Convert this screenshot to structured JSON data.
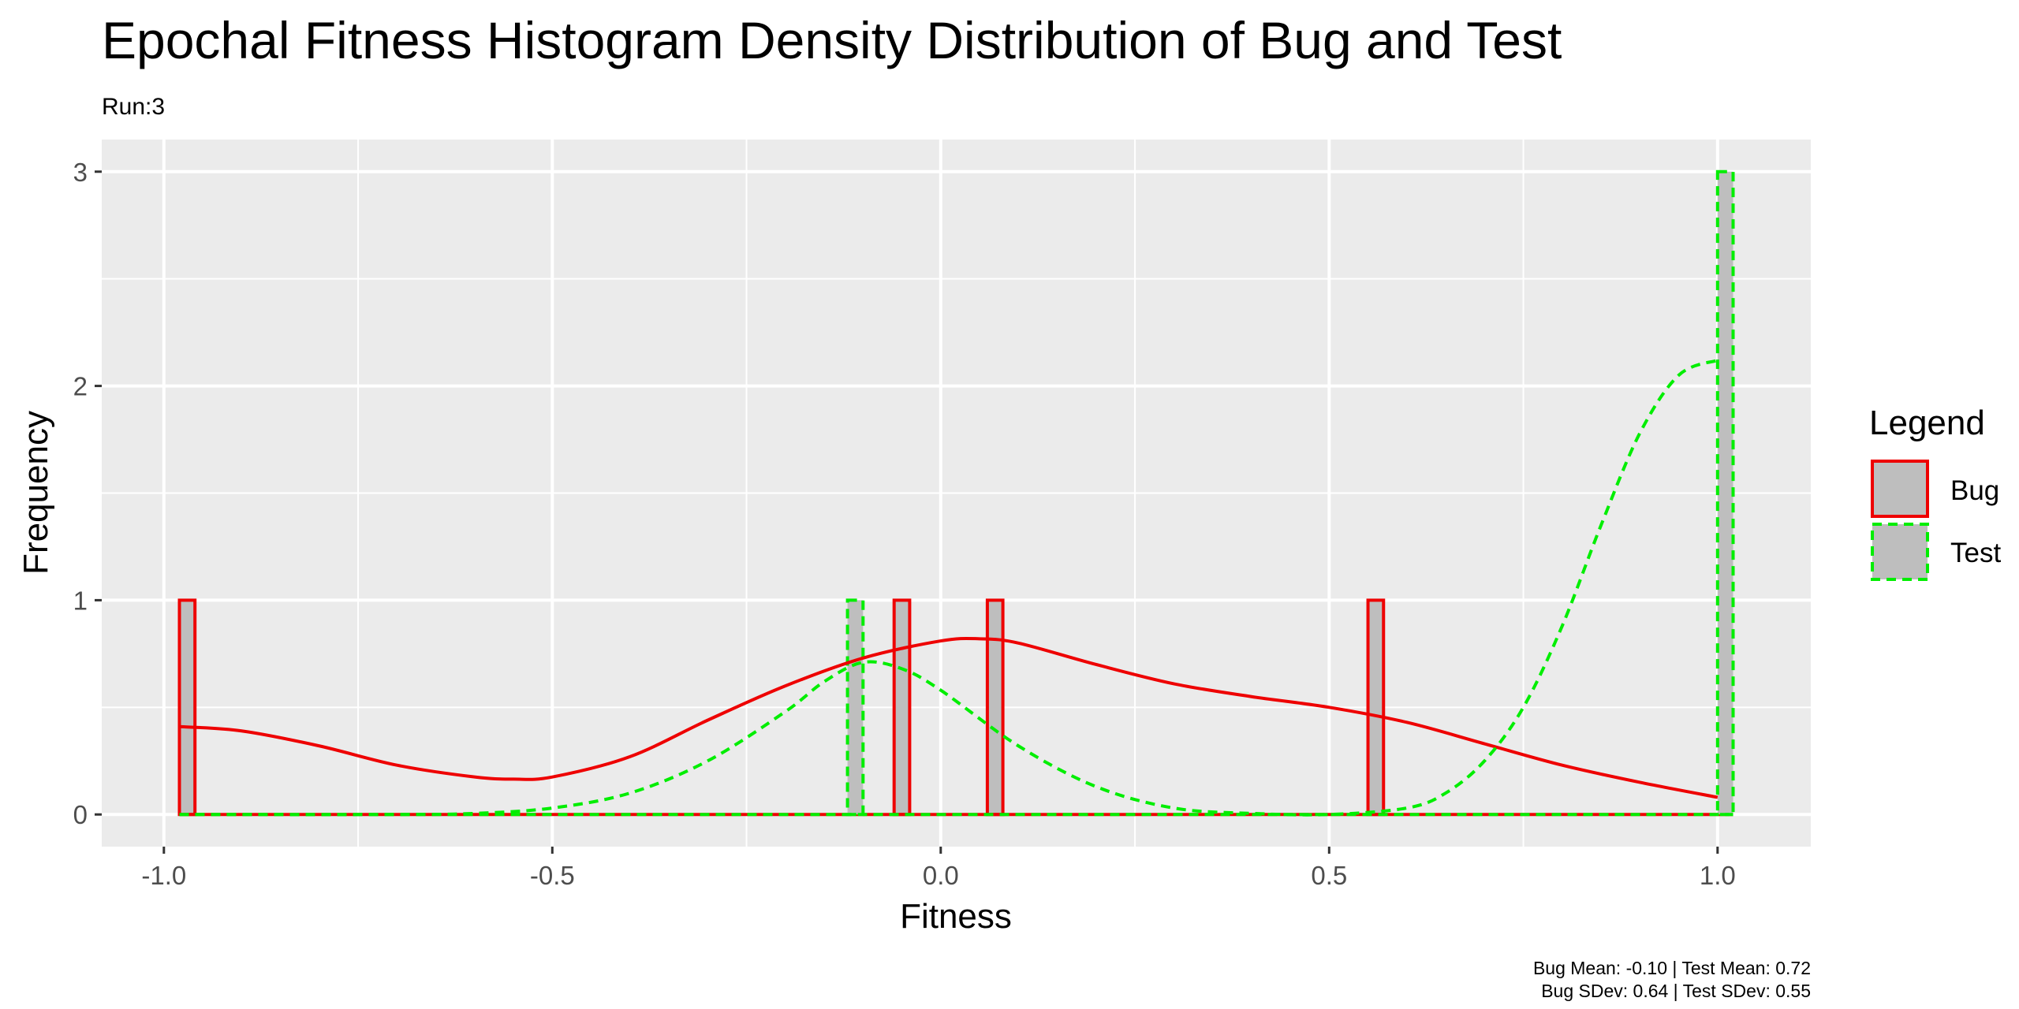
{
  "chart_data": {
    "type": "histogram",
    "title": "Epochal Fitness Histogram Density Distribution of Bug and Test",
    "subtitle": "Run:3",
    "xlabel": "Fitness",
    "ylabel": "Frequency",
    "xlim": [
      -1.08,
      1.12
    ],
    "ylim": [
      -0.15,
      3.15
    ],
    "x_ticks": [
      -1.0,
      -0.5,
      0.0,
      0.5,
      1.0
    ],
    "x_tick_labels": [
      "-1.0",
      "-0.5",
      "0.0",
      "0.5",
      "1.0"
    ],
    "y_ticks": [
      0,
      1,
      2,
      3
    ],
    "y_tick_labels": [
      "0",
      "1",
      "2",
      "3"
    ],
    "grid": true,
    "legend": {
      "title": "Legend",
      "position": "right",
      "entries": [
        {
          "label": "Bug",
          "color": "#ee0000",
          "dash": "solid"
        },
        {
          "label": "Test",
          "color": "#00ee00",
          "dash": "dashed"
        }
      ]
    },
    "colors": {
      "panel": "#ebebeb",
      "grid": "#ffffff",
      "bar_fill": "#bebebe",
      "bug": "#ee0000",
      "test": "#00ee00"
    },
    "series": [
      {
        "name": "Bug",
        "bins": {
          "start": -0.98,
          "end": 1.02,
          "counts": [
            {
              "x0": -0.98,
              "x1": -0.96,
              "count": 1
            },
            {
              "x0": -0.06,
              "x1": -0.04,
              "count": 1
            },
            {
              "x0": 0.06,
              "x1": 0.08,
              "count": 1
            },
            {
              "x0": 0.55,
              "x1": 0.57,
              "count": 1
            }
          ]
        },
        "density": {
          "x": [
            -0.98,
            -0.9,
            -0.8,
            -0.7,
            -0.6,
            -0.55,
            -0.5,
            -0.4,
            -0.3,
            -0.2,
            -0.1,
            0.0,
            0.05,
            0.1,
            0.2,
            0.3,
            0.4,
            0.5,
            0.6,
            0.7,
            0.8,
            0.9,
            1.0
          ],
          "y": [
            0.41,
            0.39,
            0.32,
            0.23,
            0.175,
            0.165,
            0.175,
            0.27,
            0.44,
            0.6,
            0.73,
            0.81,
            0.82,
            0.8,
            0.7,
            0.61,
            0.55,
            0.5,
            0.43,
            0.33,
            0.23,
            0.15,
            0.08
          ]
        },
        "mean": -0.1,
        "sdev": 0.64
      },
      {
        "name": "Test",
        "bins": {
          "start": -0.98,
          "end": 1.02,
          "counts": [
            {
              "x0": -0.12,
              "x1": -0.1,
              "count": 1
            },
            {
              "x0": 1.0,
              "x1": 1.02,
              "count": 3
            }
          ]
        },
        "density": {
          "x": [
            -0.98,
            -0.7,
            -0.6,
            -0.5,
            -0.4,
            -0.3,
            -0.2,
            -0.15,
            -0.1,
            -0.05,
            0.0,
            0.1,
            0.2,
            0.3,
            0.4,
            0.5,
            0.6,
            0.65,
            0.7,
            0.75,
            0.8,
            0.85,
            0.9,
            0.95,
            1.0
          ],
          "y": [
            0.0,
            0.0,
            0.005,
            0.03,
            0.1,
            0.25,
            0.48,
            0.62,
            0.71,
            0.68,
            0.58,
            0.32,
            0.13,
            0.03,
            0.005,
            0.0,
            0.03,
            0.1,
            0.25,
            0.5,
            0.88,
            1.35,
            1.78,
            2.05,
            2.12
          ]
        },
        "mean": 0.72,
        "sdev": 0.55
      }
    ],
    "caption": {
      "line1": "Bug Mean: -0.10 | Test Mean: 0.72",
      "line2": "Bug SDev: 0.64 | Test SDev: 0.55"
    }
  }
}
